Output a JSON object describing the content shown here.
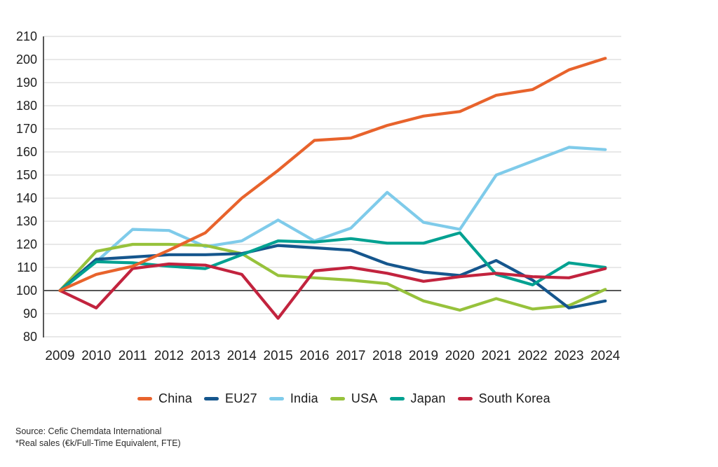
{
  "chart_data": {
    "type": "line",
    "title": "",
    "x": [
      2009,
      2010,
      2011,
      2012,
      2013,
      2014,
      2015,
      2016,
      2017,
      2018,
      2019,
      2020,
      2021,
      2022,
      2023,
      2024
    ],
    "series": [
      {
        "name": "China",
        "color": "#E8632C",
        "values": [
          100,
          107,
          110.5,
          117.5,
          125,
          140,
          152,
          165,
          166,
          171.5,
          175.5,
          177.5,
          184.5,
          187,
          195.5,
          200.5
        ]
      },
      {
        "name": "EU27",
        "color": "#15568D",
        "values": [
          100,
          113.5,
          114.5,
          115.5,
          115.5,
          116,
          119.5,
          118.5,
          117.5,
          111.5,
          108,
          106.5,
          113,
          104.5,
          92.5,
          95.5
        ]
      },
      {
        "name": "India",
        "color": "#7FCBEA",
        "values": [
          100,
          112.5,
          126.5,
          126,
          119,
          121.5,
          130.5,
          121.5,
          127,
          142.5,
          129.5,
          126.5,
          150,
          156,
          162,
          161
        ]
      },
      {
        "name": "USA",
        "color": "#97C23C",
        "values": [
          100,
          117,
          120,
          120,
          119.5,
          116,
          106.5,
          105.5,
          104.5,
          103,
          95.5,
          91.5,
          96.5,
          92,
          93.5,
          100.5
        ]
      },
      {
        "name": "Japan",
        "color": "#00A191",
        "values": [
          100,
          112.5,
          112,
          110.5,
          109.5,
          115.5,
          121.5,
          121,
          122.5,
          120.5,
          120.5,
          125,
          107,
          102.5,
          112,
          110
        ]
      },
      {
        "name": "South Korea",
        "color": "#C2233E",
        "values": [
          100,
          92.5,
          109.5,
          111.5,
          111,
          107,
          88,
          108.5,
          110,
          107.5,
          104,
          106,
          107.5,
          106,
          105.5,
          109.5
        ]
      }
    ],
    "ylim": [
      80,
      210
    ],
    "ytick_step": 10,
    "baseline": 100,
    "grid": true,
    "legend_position": "bottom",
    "axis_color": "#595959",
    "grid_color": "#d9d9d9",
    "baseline_color": "#3f3f3f"
  },
  "footnotes": {
    "source": "Source: Cefic Chemdata International",
    "note": "*Real sales (€k/Full-Time Equivalent, FTE)"
  }
}
